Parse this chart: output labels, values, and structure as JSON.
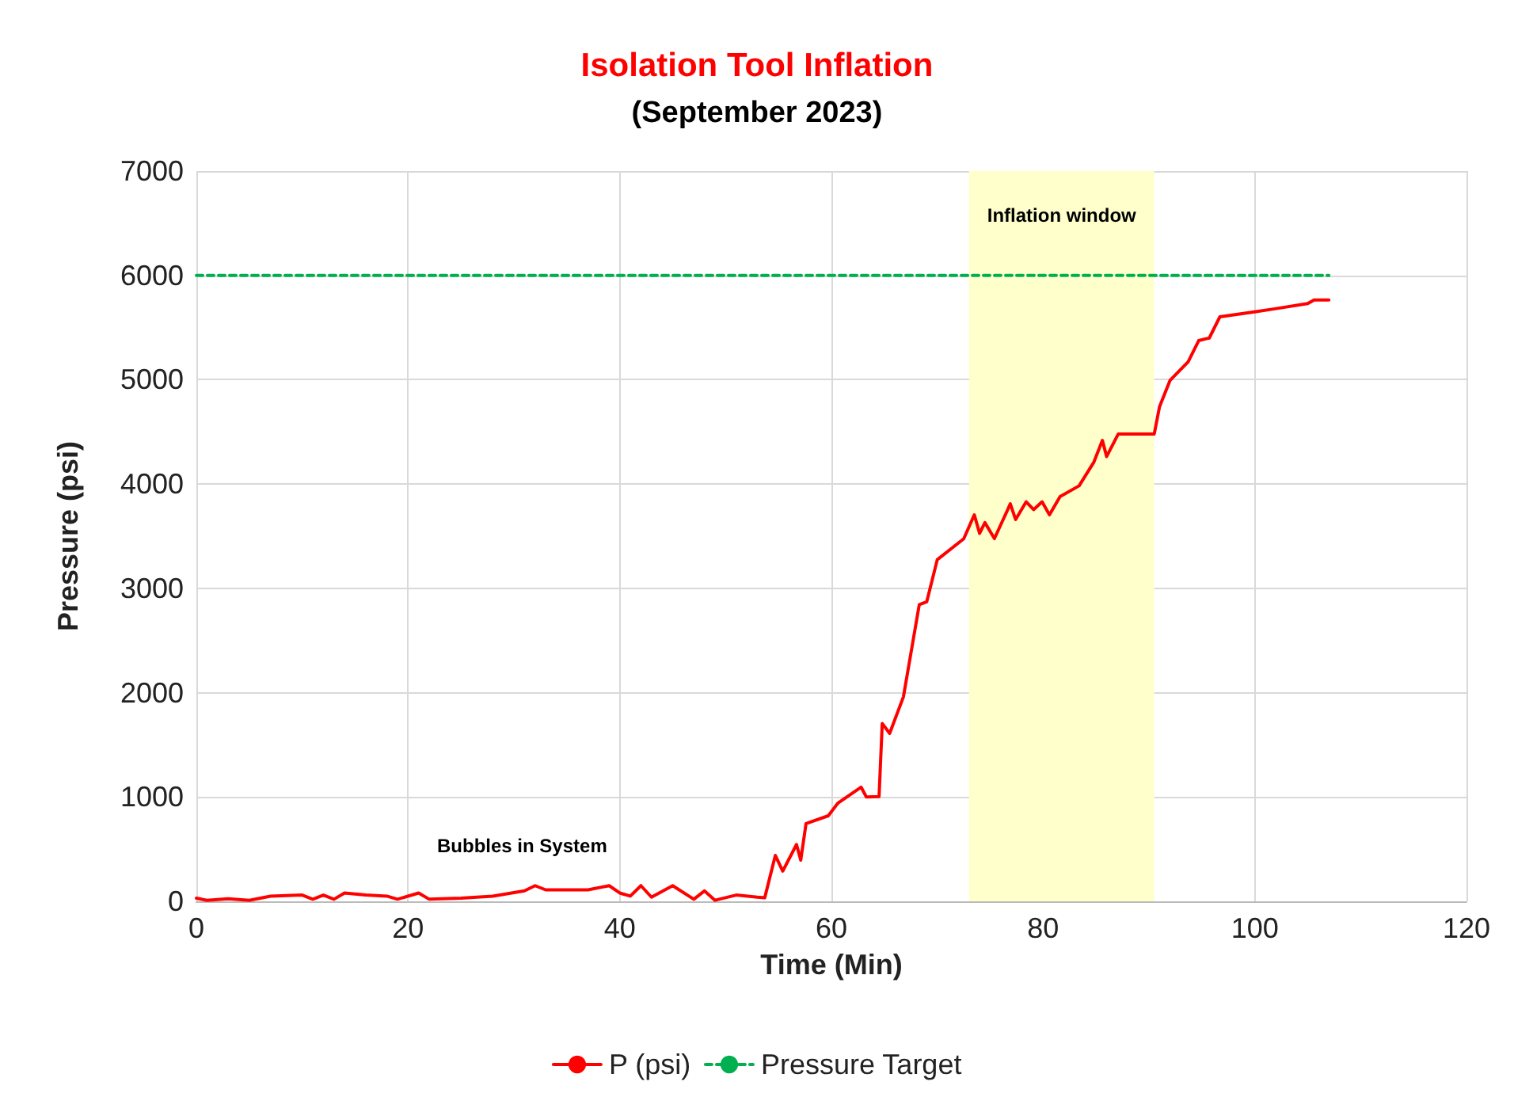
{
  "chart_data": {
    "type": "line",
    "title": "Isolation Tool Inflation",
    "subtitle": "(September 2023)",
    "xlabel": "Time (Min)",
    "ylabel": "Pressure (psi)",
    "xlim": [
      0,
      120
    ],
    "xticks": [
      0,
      20,
      40,
      60,
      80,
      100,
      120
    ],
    "ylim": [
      0,
      7000
    ],
    "yticks": [
      0,
      1000,
      2000,
      3000,
      4000,
      5000,
      6000,
      7000
    ],
    "grid": true,
    "legend": "bottom",
    "marker": "none",
    "series": [
      {
        "name": "P (psi)",
        "color": "#ff0000",
        "line_style": "solid",
        "x": [
          0,
          1,
          3,
          5,
          7,
          10,
          11,
          12,
          13,
          14,
          16,
          18,
          19,
          21,
          22,
          25,
          28,
          31,
          32,
          33,
          37,
          39,
          40,
          41,
          42,
          43,
          45,
          47,
          48,
          49,
          51,
          53,
          53.7,
          54.7,
          55.4,
          56.7,
          57.1,
          57.6,
          59.7,
          60.6,
          62.8,
          63.3,
          64.5,
          64.8,
          65.5,
          66.8,
          68.3,
          69,
          70,
          72.5,
          73.5,
          74,
          74.5,
          75.4,
          76.9,
          77.4,
          78.4,
          79.1,
          79.9,
          80.6,
          81.6,
          83.4,
          84.8,
          85.6,
          86,
          87.1,
          90.5,
          91,
          92,
          93.7,
          94.7,
          95.7,
          96.7,
          100.1,
          101.9,
          105,
          105.6,
          107
        ],
        "values": [
          30,
          10,
          25,
          10,
          50,
          60,
          20,
          60,
          20,
          80,
          60,
          50,
          20,
          80,
          20,
          30,
          50,
          100,
          150,
          110,
          110,
          150,
          80,
          50,
          150,
          40,
          150,
          20,
          100,
          10,
          60,
          40,
          35,
          440,
          290,
          545,
          395,
          745,
          820,
          940,
          1095,
          1000,
          1005,
          1705,
          1610,
          1960,
          2845,
          2870,
          3275,
          3475,
          3705,
          3527,
          3630,
          3477,
          3810,
          3660,
          3830,
          3755,
          3830,
          3705,
          3880,
          3983,
          4211,
          4418,
          4264,
          4480,
          4480,
          4742,
          4995,
          5172,
          5375,
          5400,
          5603,
          5653,
          5680,
          5730,
          5765,
          5765
        ]
      },
      {
        "name": "Pressure Target",
        "color": "#00b050",
        "line_style": "dashed",
        "x": [
          0,
          107
        ],
        "values": [
          6000,
          6000
        ]
      }
    ],
    "bands": [
      {
        "axis": "x",
        "from": 73,
        "to": 90.5,
        "label": "Inflation window",
        "color": "#ffffcc"
      }
    ],
    "annotations": [
      "Bubbles in System"
    ]
  }
}
